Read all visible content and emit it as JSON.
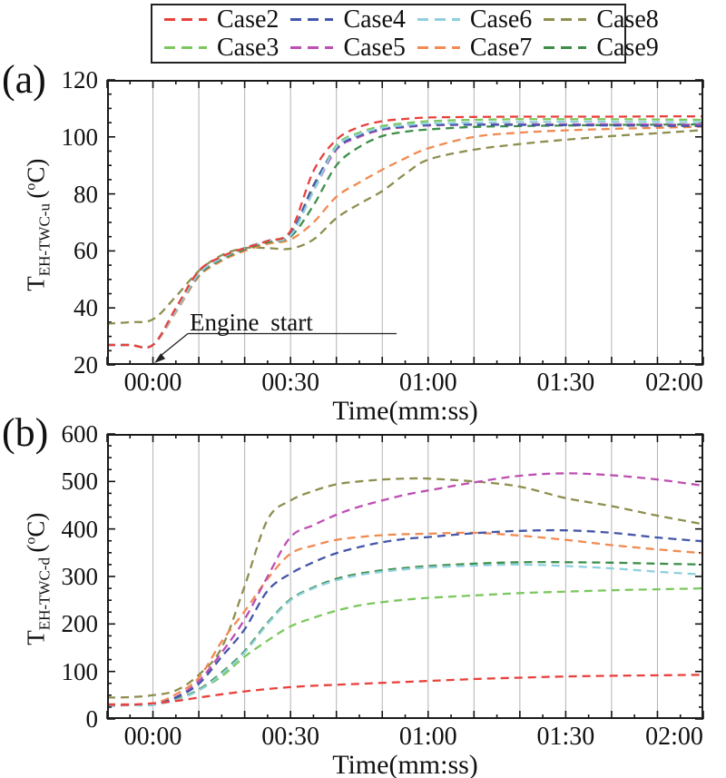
{
  "figure": {
    "background": "#ffffff",
    "legend": {
      "items": [
        {
          "label": "Case2",
          "color": "#e8413c"
        },
        {
          "label": "Case4",
          "color": "#4456a8"
        },
        {
          "label": "Case6",
          "color": "#8fd0dd"
        },
        {
          "label": "Case8",
          "color": "#8e8e4f"
        },
        {
          "label": "Case3",
          "color": "#7cc75f"
        },
        {
          "label": "Case5",
          "color": "#bd4fb2"
        },
        {
          "label": "Case7",
          "color": "#f08b52"
        },
        {
          "label": "Case9",
          "color": "#3e8e49"
        }
      ]
    },
    "panel_a": {
      "label": "(a)",
      "ylabel": {
        "base": "T",
        "sub": "EH-TWC-u",
        "unit_open": "(",
        "unit_sup": "o",
        "unit_close": "C)"
      }
    },
    "panel_b": {
      "label": "(b)",
      "ylabel": {
        "base": "T",
        "sub": "EH-TWC-d",
        "unit_open": "(",
        "unit_sup": "o",
        "unit_close": "C)"
      }
    },
    "annotation_text": "Engine start"
  },
  "chart_data": [
    {
      "type": "line",
      "panel": "(a)",
      "xlabel": "Time(mm:ss)",
      "ylabel": "T_EH-TWC-u (oC)",
      "xlim_seconds": [
        -10,
        120
      ],
      "ylim": [
        20,
        120
      ],
      "y_ticks": [
        20,
        40,
        60,
        80,
        100,
        120
      ],
      "y_major_step": 20,
      "y_minor_step": 5,
      "x_tick_seconds": [
        0,
        30,
        60,
        90,
        120
      ],
      "x_tick_labels": [
        "00:00",
        "00:30",
        "01:00",
        "01:30",
        "02:00"
      ],
      "x_major_tick_step": 10,
      "x_minor_tick_step": 5,
      "grid_vertical_step_seconds": 10,
      "grid_color": "#b3b3b3",
      "x_seconds": [
        -10,
        -5,
        0,
        5,
        10,
        15,
        20,
        25,
        30,
        35,
        40,
        45,
        50,
        55,
        60,
        70,
        80,
        90,
        100,
        110,
        120
      ],
      "series": [
        {
          "name": "Case2",
          "color": "#e8413c",
          "values": [
            27,
            27,
            27,
            40,
            53,
            58,
            61,
            63.5,
            67,
            88,
            99,
            103.5,
            105.5,
            106.3,
            106.8,
            107,
            107.1,
            107.1,
            107.1,
            107.2,
            107.2
          ]
        },
        {
          "name": "Case3",
          "color": "#7cc75f",
          "values": [
            27,
            27,
            27,
            39.5,
            52.5,
            58,
            61,
            63.5,
            66.5,
            82,
            97,
            101.5,
            103.8,
            104.8,
            105.5,
            106,
            106.2,
            106.2,
            106.2,
            106.1,
            106
          ]
        },
        {
          "name": "Case4",
          "color": "#4456a8",
          "values": [
            27,
            27,
            27,
            39.5,
            52,
            57.5,
            61,
            63.5,
            66,
            83,
            96,
            100.5,
            102.8,
            103.6,
            104.2,
            104.3,
            104.2,
            104.1,
            104,
            103.9,
            103.8
          ]
        },
        {
          "name": "Case5",
          "color": "#bd4fb2",
          "values": [
            27,
            27,
            27,
            39,
            52,
            57.5,
            61,
            63.5,
            65.5,
            81,
            95.5,
            100,
            102.5,
            103.4,
            104,
            104.3,
            104.4,
            104.4,
            104.4,
            104.3,
            104.3
          ]
        },
        {
          "name": "Case6",
          "color": "#8fd0dd",
          "values": [
            27,
            27,
            27,
            39,
            52,
            57.5,
            61,
            63.5,
            65.5,
            81,
            96.5,
            101,
            103.2,
            104.1,
            104.7,
            105,
            105.2,
            105.3,
            105.3,
            105.2,
            105.2
          ]
        },
        {
          "name": "Case7",
          "color": "#f08b52",
          "values": [
            27,
            27,
            27,
            38.5,
            51,
            56.5,
            60,
            62.5,
            64,
            70,
            79,
            84,
            88.5,
            92.5,
            96,
            100,
            101.5,
            102.3,
            102.8,
            103.2,
            103.6
          ]
        },
        {
          "name": "Case8",
          "color": "#8e8e4f",
          "values": [
            34.5,
            35,
            36,
            44,
            53,
            58.5,
            61,
            61,
            60.8,
            64,
            71.5,
            76.5,
            81,
            87,
            92,
            95.5,
            97.5,
            99,
            100.3,
            101.3,
            102.4
          ]
        },
        {
          "name": "Case9",
          "color": "#3e8e49",
          "values": [
            27,
            27,
            27,
            39,
            51.5,
            57,
            60.5,
            63,
            65,
            76,
            90,
            96.5,
            100.3,
            101.8,
            102.6,
            103.5,
            103.8,
            104,
            104.2,
            104.3,
            104.4
          ]
        }
      ],
      "annotation": {
        "text": "Engine start",
        "points_to": {
          "t_seconds": 0,
          "value": 20
        }
      }
    },
    {
      "type": "line",
      "panel": "(b)",
      "xlabel": "Time(mm:ss)",
      "ylabel": "T_EH-TWC-d (oC)",
      "xlim_seconds": [
        -10,
        120
      ],
      "ylim": [
        0,
        600
      ],
      "y_ticks": [
        0,
        100,
        200,
        300,
        400,
        500,
        600
      ],
      "y_major_step": 100,
      "y_minor_step": 25,
      "x_tick_seconds": [
        0,
        30,
        60,
        90,
        120
      ],
      "x_tick_labels": [
        "00:00",
        "00:30",
        "01:00",
        "01:30",
        "02:00"
      ],
      "x_major_tick_step": 10,
      "x_minor_tick_step": 5,
      "grid_vertical_step_seconds": 10,
      "grid_color": "#b3b3b3",
      "x_seconds": [
        -10,
        -5,
        0,
        5,
        10,
        15,
        20,
        25,
        30,
        35,
        40,
        45,
        50,
        55,
        60,
        70,
        80,
        90,
        100,
        110,
        120
      ],
      "series": [
        {
          "name": "Case2",
          "color": "#e8413c",
          "values": [
            30,
            30,
            33,
            38,
            45,
            52,
            58,
            63,
            67,
            70,
            72,
            74,
            76,
            78,
            80,
            84,
            87,
            89.5,
            91,
            92,
            93
          ]
        },
        {
          "name": "Case3",
          "color": "#7cc75f",
          "values": [
            30,
            30,
            30,
            42,
            61,
            90,
            131,
            165,
            195,
            213,
            228,
            239,
            246,
            251,
            255,
            260,
            265,
            268,
            271,
            273,
            275
          ]
        },
        {
          "name": "Case4",
          "color": "#4456a8",
          "values": [
            28,
            29,
            30,
            45,
            74,
            131,
            189,
            270,
            306,
            330,
            349,
            362,
            372,
            379,
            383,
            391,
            396,
            397,
            392,
            382,
            374
          ]
        },
        {
          "name": "Case5",
          "color": "#bd4fb2",
          "values": [
            30,
            30,
            31,
            46,
            80,
            140,
            210,
            300,
            383,
            408,
            430,
            447,
            460,
            472,
            481,
            498,
            512,
            517,
            513,
            504,
            491
          ]
        },
        {
          "name": "Case6",
          "color": "#8fd0dd",
          "values": [
            29,
            29,
            30,
            40,
            60,
            95,
            140,
            200,
            250,
            275,
            292,
            303,
            310,
            315,
            319,
            323,
            325,
            322,
            317,
            310,
            304
          ]
        },
        {
          "name": "Case7",
          "color": "#f08b52",
          "values": [
            31,
            31,
            32,
            52,
            87,
            163,
            227,
            295,
            348,
            365,
            377,
            383,
            387,
            389,
            390,
            392,
            386,
            377,
            366,
            357,
            349
          ]
        },
        {
          "name": "Case8",
          "color": "#8e8e4f",
          "values": [
            45,
            46,
            50,
            60,
            93,
            150,
            280,
            420,
            460,
            480,
            494,
            500,
            504,
            506,
            506,
            500,
            489,
            465,
            448,
            428,
            410
          ]
        },
        {
          "name": "Case9",
          "color": "#3e8e49",
          "values": [
            29,
            29,
            30,
            41,
            62,
            98,
            143,
            203,
            252,
            277,
            295,
            306,
            313,
            318,
            322,
            327,
            330,
            330,
            329,
            327,
            325
          ]
        }
      ]
    }
  ]
}
